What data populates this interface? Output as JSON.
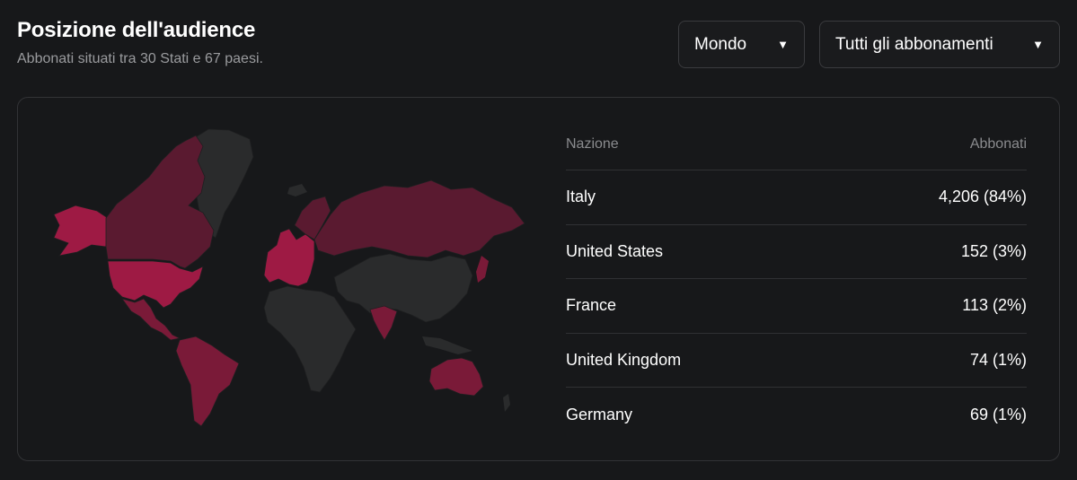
{
  "header": {
    "title": "Posizione dell'audience",
    "subtitle": "Abbonati situati tra 30 Stati e 67 paesi."
  },
  "filters": {
    "region": "Mondo",
    "subscription": "Tutti gli abbonamenti"
  },
  "colors": {
    "highlight_strong": "#9e1a44",
    "highlight_mid": "#7a1a38",
    "highlight_dim": "#4e1a2c",
    "land_inactive": "#2a2b2c"
  },
  "table": {
    "col_country": "Nazione",
    "col_subscribers": "Abbonati",
    "rows": [
      {
        "country": "Italy",
        "value": "4,206 (84%)"
      },
      {
        "country": "United States",
        "value": "152 (3%)"
      },
      {
        "country": "France",
        "value": "113 (2%)"
      },
      {
        "country": "United Kingdom",
        "value": "74 (1%)"
      },
      {
        "country": "Germany",
        "value": "69 (1%)"
      }
    ]
  }
}
